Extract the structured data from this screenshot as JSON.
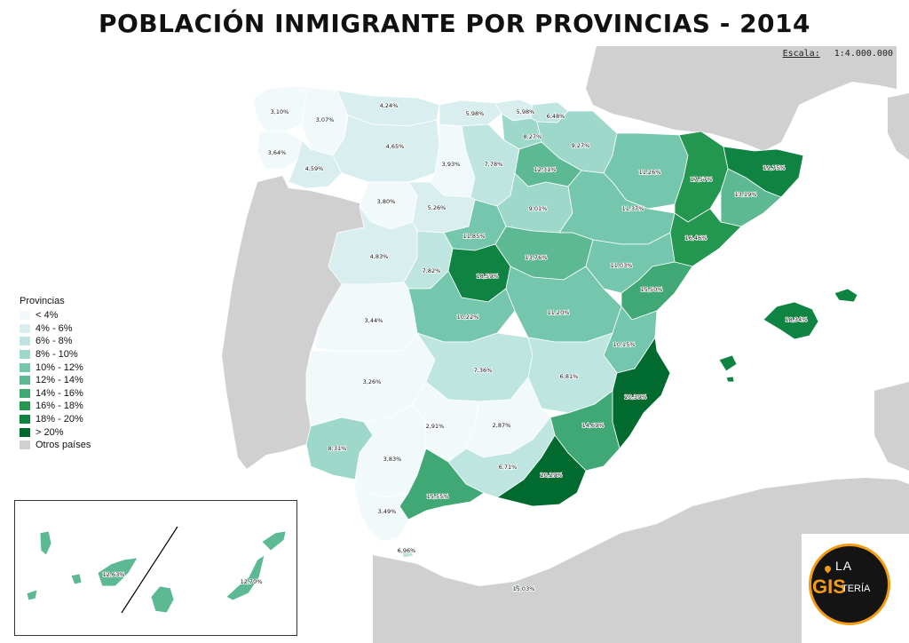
{
  "title": "POBLACIÓN INMIGRANTE POR PROVINCIAS - 2014",
  "scale": {
    "label": "Escala:",
    "value": "1:4.000.000"
  },
  "colors": {
    "c0": "#f1f9fb",
    "c1": "#d9efef",
    "c2": "#bfe5e0",
    "c3": "#9dd8cb",
    "c4": "#74c6ad",
    "c5": "#5db994",
    "c6": "#3fa874",
    "c7": "#23964f",
    "c8": "#0f8442",
    "c9": "#016b2f",
    "other": "#d0d0d0"
  },
  "legend": {
    "title": "Provincias",
    "items": [
      {
        "label": "< 4%",
        "color": "#f1f9fb"
      },
      {
        "label": "4% - 6%",
        "color": "#d9efef"
      },
      {
        "label": "6% - 8%",
        "color": "#bfe5e0"
      },
      {
        "label": "8% - 10%",
        "color": "#9dd8cb"
      },
      {
        "label": "10% - 12%",
        "color": "#74c6ad"
      },
      {
        "label": "12% - 14%",
        "color": "#5db994"
      },
      {
        "label": "14% - 16%",
        "color": "#3fa874"
      },
      {
        "label": "16% - 18%",
        "color": "#23964f"
      },
      {
        "label": "18% - 20%",
        "color": "#0f8442"
      },
      {
        "label": "> 20%",
        "color": "#016b2f"
      },
      {
        "label": "Otros países",
        "color": "#d0d0d0"
      }
    ]
  },
  "provinces": [
    {
      "id": "coruna",
      "value": "3,10%",
      "cls": "c0"
    },
    {
      "id": "lugo",
      "value": "3,07%",
      "cls": "c0"
    },
    {
      "id": "pontevedra",
      "value": "3,64%",
      "cls": "c0"
    },
    {
      "id": "ourense",
      "value": "4,59%",
      "cls": "c1"
    },
    {
      "id": "asturias",
      "value": "4,24%",
      "cls": "c1"
    },
    {
      "id": "leon",
      "value": "4,65%",
      "cls": "c1"
    },
    {
      "id": "cantabria",
      "value": "5,98%",
      "cls": "c1"
    },
    {
      "id": "vizcaya",
      "value": "5,98%",
      "cls": "c1"
    },
    {
      "id": "guipuzcoa",
      "value": "6,48%",
      "cls": "c2"
    },
    {
      "id": "alava",
      "value": "8,27%",
      "cls": "c3"
    },
    {
      "id": "navarra",
      "value": "9,27%",
      "cls": "c3"
    },
    {
      "id": "palencia",
      "value": "3,93%",
      "cls": "c0"
    },
    {
      "id": "burgos",
      "value": "7,78%",
      "cls": "c2"
    },
    {
      "id": "rioja",
      "value": "12,31%",
      "cls": "c5"
    },
    {
      "id": "huesca",
      "value": "11,26%",
      "cls": "c4"
    },
    {
      "id": "lleida",
      "value": "17,57%",
      "cls": "c7"
    },
    {
      "id": "girona",
      "value": "19,75%",
      "cls": "c8"
    },
    {
      "id": "barcelona",
      "value": "13,19%",
      "cls": "c5"
    },
    {
      "id": "zamora",
      "value": "3,80%",
      "cls": "c0"
    },
    {
      "id": "valladolid",
      "value": "5,26%",
      "cls": "c1"
    },
    {
      "id": "soria",
      "value": "9,01%",
      "cls": "c3"
    },
    {
      "id": "zaragoza",
      "value": "11,37%",
      "cls": "c4"
    },
    {
      "id": "tarragona",
      "value": "16,46%",
      "cls": "c7"
    },
    {
      "id": "salamanca",
      "value": "4,83%",
      "cls": "c1"
    },
    {
      "id": "avila",
      "value": "7,82%",
      "cls": "c2"
    },
    {
      "id": "segovia",
      "value": "11,85%",
      "cls": "c4"
    },
    {
      "id": "guadalajara",
      "value": "13,76%",
      "cls": "c5"
    },
    {
      "id": "teruel",
      "value": "11,03%",
      "cls": "c4"
    },
    {
      "id": "castellon",
      "value": "15,50%",
      "cls": "c6"
    },
    {
      "id": "madrid",
      "value": "18,59%",
      "cls": "c8"
    },
    {
      "id": "caceres",
      "value": "3,44%",
      "cls": "c0"
    },
    {
      "id": "toledo",
      "value": "10,22%",
      "cls": "c4"
    },
    {
      "id": "cuenca",
      "value": "11,20%",
      "cls": "c4"
    },
    {
      "id": "valencia",
      "value": "10,15%",
      "cls": "c4"
    },
    {
      "id": "baleares",
      "value": "18,34%",
      "cls": "c8"
    },
    {
      "id": "badajoz",
      "value": "3,26%",
      "cls": "c0"
    },
    {
      "id": "ciudadreal",
      "value": "7,36%",
      "cls": "c2"
    },
    {
      "id": "albacete",
      "value": "6,81%",
      "cls": "c2"
    },
    {
      "id": "alicante",
      "value": "20,39%",
      "cls": "c9"
    },
    {
      "id": "murcia",
      "value": "14,69%",
      "cls": "c6"
    },
    {
      "id": "huelva",
      "value": "8,31%",
      "cls": "c3"
    },
    {
      "id": "sevilla",
      "value": "3,83%",
      "cls": "c0"
    },
    {
      "id": "cordoba",
      "value": "2,91%",
      "cls": "c0"
    },
    {
      "id": "jaen",
      "value": "2,87%",
      "cls": "c0"
    },
    {
      "id": "granada",
      "value": "6,71%",
      "cls": "c2"
    },
    {
      "id": "almeria",
      "value": "20,29%",
      "cls": "c9"
    },
    {
      "id": "malaga",
      "value": "15,55%",
      "cls": "c6"
    },
    {
      "id": "cadiz",
      "value": "3,49%",
      "cls": "c0"
    },
    {
      "id": "ceuta",
      "value": "6,96%",
      "cls": "c2"
    },
    {
      "id": "melilla",
      "value": "15,03%",
      "cls": "c6"
    },
    {
      "id": "tenerife",
      "value": "12,63%",
      "cls": "c5"
    },
    {
      "id": "laspalmas",
      "value": "12,70%",
      "cls": "c5"
    }
  ],
  "logo": {
    "line1": "LA",
    "line2": "GIS",
    "line3": "TERÍA"
  }
}
